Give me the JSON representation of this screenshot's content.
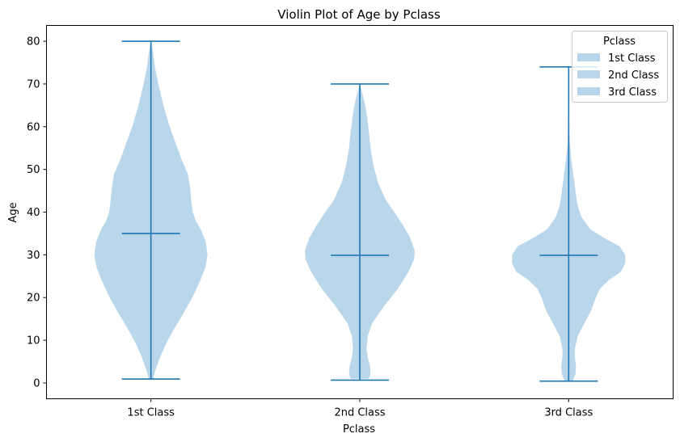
{
  "chart_data": {
    "type": "violin",
    "title": "Violin Plot of Age by Pclass",
    "xlabel": "Pclass",
    "ylabel": "Age",
    "categories": [
      "1st Class",
      "2nd Class",
      "3rd Class"
    ],
    "ylim": [
      -3.7,
      83.7
    ],
    "yticks": [
      0,
      10,
      20,
      30,
      40,
      50,
      60,
      70,
      80
    ],
    "grid": false,
    "legend": {
      "title": "Pclass",
      "placement": "top-right",
      "entries": [
        "1st Class",
        "2nd Class",
        "3rd Class"
      ]
    },
    "colors": {
      "body": "#bad6ea",
      "lines": "#1f77b4"
    },
    "series": [
      {
        "category": "1st Class",
        "min": 0.92,
        "median": 35,
        "max": 80,
        "density": [
          [
            1,
            0.04
          ],
          [
            3,
            0.08
          ],
          [
            6,
            0.16
          ],
          [
            9,
            0.26
          ],
          [
            12,
            0.38
          ],
          [
            16,
            0.56
          ],
          [
            20,
            0.73
          ],
          [
            24,
            0.87
          ],
          [
            27,
            0.96
          ],
          [
            30,
            1.0
          ],
          [
            33,
            0.97
          ],
          [
            36,
            0.88
          ],
          [
            38,
            0.79
          ],
          [
            40,
            0.74
          ],
          [
            43,
            0.71
          ],
          [
            46,
            0.69
          ],
          [
            49,
            0.65
          ],
          [
            52,
            0.55
          ],
          [
            56,
            0.44
          ],
          [
            60,
            0.33
          ],
          [
            65,
            0.22
          ],
          [
            70,
            0.13
          ],
          [
            74,
            0.07
          ],
          [
            78,
            0.03
          ],
          [
            80,
            0.0
          ]
        ]
      },
      {
        "category": "2nd Class",
        "min": 0.67,
        "median": 29.9,
        "max": 70,
        "density": [
          [
            1,
            0.16
          ],
          [
            2,
            0.19
          ],
          [
            4,
            0.18
          ],
          [
            6,
            0.14
          ],
          [
            8,
            0.12
          ],
          [
            11,
            0.14
          ],
          [
            14,
            0.22
          ],
          [
            18,
            0.43
          ],
          [
            22,
            0.67
          ],
          [
            26,
            0.86
          ],
          [
            29,
            0.96
          ],
          [
            31,
            0.97
          ],
          [
            34,
            0.89
          ],
          [
            37,
            0.76
          ],
          [
            40,
            0.61
          ],
          [
            43,
            0.45
          ],
          [
            47,
            0.32
          ],
          [
            51,
            0.24
          ],
          [
            55,
            0.19
          ],
          [
            59,
            0.16
          ],
          [
            63,
            0.12
          ],
          [
            66,
            0.08
          ],
          [
            68,
            0.04
          ],
          [
            70,
            0.0
          ]
        ]
      },
      {
        "category": "3rd Class",
        "min": 0.42,
        "median": 29.9,
        "max": 74,
        "density": [
          [
            0.5,
            0.07
          ],
          [
            2,
            0.12
          ],
          [
            4,
            0.13
          ],
          [
            6,
            0.11
          ],
          [
            8,
            0.11
          ],
          [
            11,
            0.16
          ],
          [
            14,
            0.28
          ],
          [
            17,
            0.4
          ],
          [
            20,
            0.48
          ],
          [
            22,
            0.55
          ],
          [
            24,
            0.7
          ],
          [
            26,
            0.92
          ],
          [
            28,
            1.0
          ],
          [
            30,
            1.0
          ],
          [
            32,
            0.9
          ],
          [
            34,
            0.62
          ],
          [
            36,
            0.38
          ],
          [
            39,
            0.22
          ],
          [
            42,
            0.15
          ],
          [
            45,
            0.12
          ],
          [
            48,
            0.09
          ],
          [
            52,
            0.05
          ],
          [
            56,
            0.02
          ],
          [
            60,
            0.01
          ],
          [
            66,
            0.005
          ],
          [
            74,
            0.0
          ]
        ]
      }
    ]
  }
}
